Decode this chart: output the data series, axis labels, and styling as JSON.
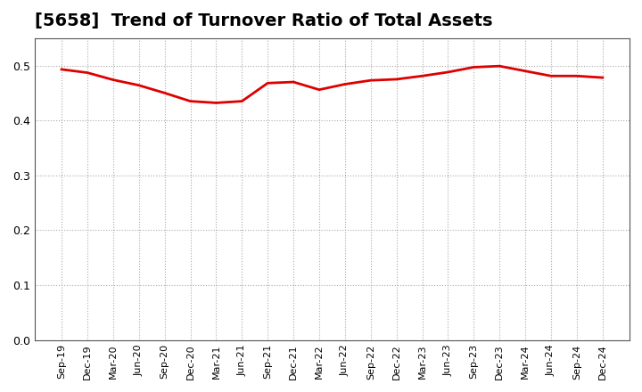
{
  "title": "[5658]  Trend of Turnover Ratio of Total Assets",
  "title_fontsize": 14,
  "line_color": "#dd0000",
  "line_width": 2.0,
  "background_color": "#ffffff",
  "grid_color": "#aaaaaa",
  "ylim": [
    0.0,
    0.55
  ],
  "yticks": [
    0.0,
    0.1,
    0.2,
    0.3,
    0.4,
    0.5
  ],
  "x_labels": [
    "Sep-19",
    "Dec-19",
    "Mar-20",
    "Jun-20",
    "Sep-20",
    "Dec-20",
    "Mar-21",
    "Jun-21",
    "Sep-21",
    "Dec-21",
    "Mar-22",
    "Jun-22",
    "Sep-22",
    "Dec-22",
    "Mar-23",
    "Jun-23",
    "Sep-23",
    "Dec-23",
    "Mar-24",
    "Jun-24",
    "Sep-24",
    "Dec-24"
  ],
  "values": [
    0.493,
    0.487,
    0.474,
    0.464,
    0.45,
    0.435,
    0.432,
    0.435,
    0.468,
    0.47,
    0.456,
    0.466,
    0.473,
    0.475,
    0.481,
    0.488,
    0.497,
    0.499,
    0.49,
    0.481,
    0.481,
    0.478
  ]
}
